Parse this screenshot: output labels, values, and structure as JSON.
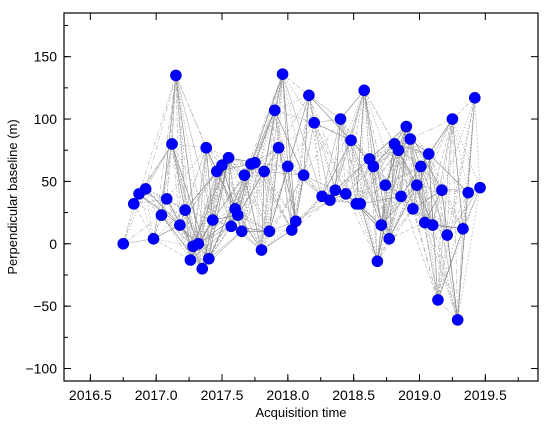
{
  "chart_data": {
    "type": "scatter",
    "title": "",
    "xlabel": "Acquisition time",
    "ylabel": "Perpendicular baseline (m)",
    "xlim": [
      2016.3,
      2019.9
    ],
    "ylim": [
      -110,
      185
    ],
    "xticks": [
      2016.5,
      2017.0,
      2017.5,
      2018.0,
      2018.5,
      2019.0,
      2019.5
    ],
    "xtick_labels": [
      "2016.5",
      "2017.0",
      "2017.5",
      "2018.0",
      "2018.5",
      "2019.0",
      "2019.5"
    ],
    "yticks": [
      -100,
      -50,
      0,
      50,
      100,
      150
    ],
    "ytick_labels": [
      "−100",
      "−50",
      "0",
      "50",
      "100",
      "150"
    ],
    "grid": false,
    "marker_color": "#0000ff",
    "edge_color": "#b0b0b0",
    "series": [
      {
        "x": [
          2016.75,
          2016.83,
          2016.87,
          2016.92,
          2016.98,
          2017.04,
          2017.08,
          2017.12,
          2017.15,
          2017.18,
          2017.22,
          2017.26,
          2017.28,
          2017.32,
          2017.35,
          2017.38,
          2017.4,
          2017.43,
          2017.46,
          2017.5,
          2017.55,
          2017.57,
          2017.6,
          2017.62,
          2017.65,
          2017.67,
          2017.72,
          2017.75,
          2017.8,
          2017.82,
          2017.86,
          2017.9,
          2017.93,
          2017.96,
          2018.0,
          2018.03,
          2018.06,
          2018.12,
          2018.16,
          2018.2,
          2018.26,
          2018.32,
          2018.36,
          2018.4,
          2018.44,
          2018.48,
          2018.52,
          2018.55,
          2018.58,
          2018.62,
          2018.65,
          2018.68,
          2018.71,
          2018.74,
          2018.77,
          2018.81,
          2018.84,
          2018.86,
          2018.9,
          2018.93,
          2018.95,
          2018.98,
          2019.01,
          2019.04,
          2019.07,
          2019.1,
          2019.14,
          2019.17,
          2019.21,
          2019.25,
          2019.29,
          2019.33,
          2019.37,
          2019.42,
          2019.46
        ],
        "y": [
          0,
          32,
          40,
          44,
          4,
          23,
          36,
          80,
          135,
          15,
          27,
          -13,
          -2,
          0,
          -20,
          77,
          -12,
          19,
          58,
          63,
          69,
          14,
          28,
          23,
          10,
          55,
          64,
          65,
          -5,
          58,
          10,
          107,
          77,
          136,
          62,
          11,
          18,
          55,
          119,
          97,
          38,
          35,
          43,
          100,
          40,
          83,
          32,
          32,
          123,
          68,
          62,
          -14,
          15,
          47,
          4,
          80,
          75,
          38,
          94,
          84,
          28,
          47,
          62,
          17,
          72,
          15,
          -45,
          43,
          7,
          100,
          -61,
          12,
          41,
          117,
          45
        ]
      }
    ]
  }
}
